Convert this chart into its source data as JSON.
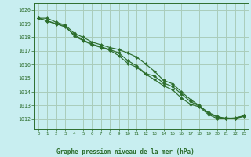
{
  "title": "Graphe pression niveau de la mer (hPa)",
  "bg_color": "#c8eef0",
  "grid_color": "#aaccbb",
  "line_color": "#2d6e2d",
  "marker_color": "#2d6e2d",
  "x_ticks": [
    0,
    1,
    2,
    3,
    4,
    5,
    6,
    7,
    8,
    9,
    10,
    11,
    12,
    13,
    14,
    15,
    16,
    17,
    18,
    19,
    20,
    21,
    22,
    23
  ],
  "y_ticks": [
    1012,
    1013,
    1014,
    1015,
    1016,
    1017,
    1018,
    1019,
    1020
  ],
  "ylim": [
    1011.3,
    1020.5
  ],
  "xlim": [
    -0.5,
    23.5
  ],
  "line1": [
    1019.4,
    1019.4,
    1019.1,
    1018.9,
    1018.3,
    1018.0,
    1017.65,
    1017.45,
    1017.25,
    1017.1,
    1016.85,
    1016.55,
    1016.05,
    1015.5,
    1014.85,
    1014.6,
    1014.0,
    1013.45,
    1013.0,
    1012.45,
    1012.15,
    1012.05,
    1012.05,
    1012.2
  ],
  "line2": [
    1019.4,
    1019.2,
    1019.0,
    1018.75,
    1018.2,
    1017.8,
    1017.5,
    1017.3,
    1017.1,
    1016.85,
    1016.3,
    1015.9,
    1015.35,
    1015.15,
    1014.65,
    1014.4,
    1013.85,
    1013.3,
    1012.95,
    1012.5,
    1012.2,
    1012.05,
    1012.1,
    1012.25
  ],
  "line3": [
    1019.4,
    1019.2,
    1018.95,
    1018.85,
    1018.1,
    1017.75,
    1017.45,
    1017.25,
    1017.05,
    1016.65,
    1016.1,
    1015.8,
    1015.3,
    1014.9,
    1014.45,
    1014.15,
    1013.55,
    1013.1,
    1012.9,
    1012.35,
    1012.05,
    1012.1,
    1012.05,
    1012.25
  ]
}
